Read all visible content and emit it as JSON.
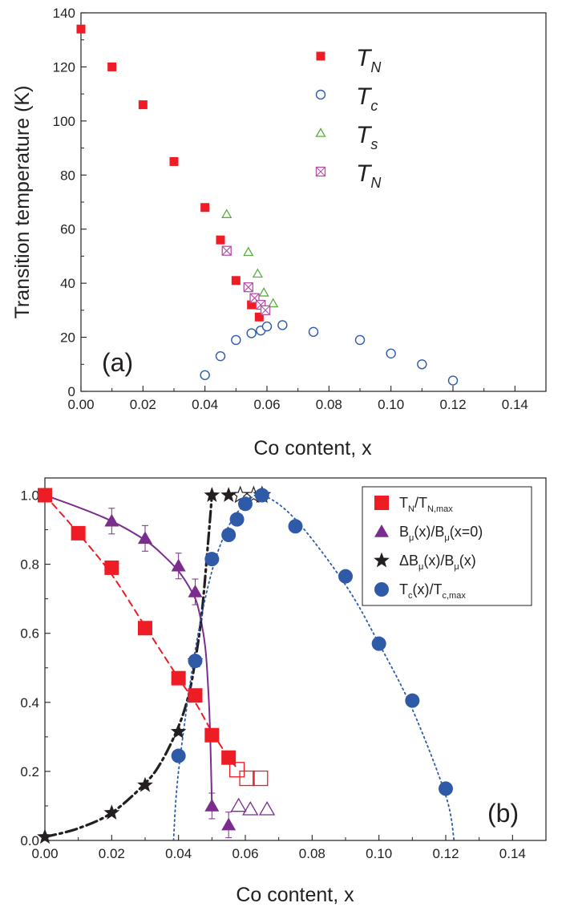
{
  "chart_data": [
    {
      "panel": "(a)",
      "type": "scatter",
      "xlabel": "Co content, x",
      "ylabel": "Transition temperature (K)",
      "xlim": [
        0.0,
        0.15
      ],
      "ylim": [
        0,
        140
      ],
      "xticks": [
        "0.00",
        "0.02",
        "0.04",
        "0.06",
        "0.08",
        "0.10",
        "0.12",
        "0.14"
      ],
      "yticks": [
        "0",
        "20",
        "40",
        "60",
        "80",
        "100",
        "120",
        "140"
      ],
      "legend": [
        {
          "main": "T",
          "sub": "N",
          "marker": "filled-square",
          "color": "#ee1c25"
        },
        {
          "main": "T",
          "sub": "c",
          "marker": "open-circle",
          "color": "#2e5aa8"
        },
        {
          "main": "T",
          "sub": "s",
          "marker": "open-triangle",
          "color": "#5aae3f"
        },
        {
          "main": "T",
          "sub": "N",
          "marker": "crossed-square",
          "color": "#b54fa6"
        }
      ],
      "series": [
        {
          "name": "T_N",
          "marker": "filled-square",
          "color": "#ee1c25",
          "x": [
            0.0,
            0.01,
            0.02,
            0.03,
            0.04,
            0.045,
            0.05,
            0.055,
            0.0575
          ],
          "y": [
            134,
            120,
            106,
            85,
            68,
            56,
            41,
            32,
            27.5
          ]
        },
        {
          "name": "T_c",
          "marker": "open-circle",
          "color": "#2e5aa8",
          "x": [
            0.04,
            0.045,
            0.05,
            0.055,
            0.058,
            0.06,
            0.065,
            0.075,
            0.09,
            0.1,
            0.11,
            0.12
          ],
          "y": [
            6,
            13,
            19,
            21.5,
            22.5,
            24,
            24.5,
            22,
            19,
            14,
            10,
            4
          ]
        },
        {
          "name": "T_s",
          "marker": "open-triangle",
          "color": "#5aae3f",
          "x": [
            0.047,
            0.054,
            0.057,
            0.059,
            0.062
          ],
          "y": [
            65.5,
            51.5,
            43.5,
            36.5,
            32.5
          ]
        },
        {
          "name": "T_N (mu)",
          "marker": "crossed-square",
          "color": "#b54fa6",
          "x": [
            0.047,
            0.054,
            0.056,
            0.058,
            0.0595
          ],
          "y": [
            52,
            38.5,
            34.5,
            32,
            30
          ]
        }
      ]
    },
    {
      "panel": "(b)",
      "type": "scatter",
      "xlabel": "Co content, x",
      "ylabel": "",
      "xlim": [
        0.0,
        0.15
      ],
      "ylim": [
        0.0,
        1.05
      ],
      "xticks": [
        "0.00",
        "0.02",
        "0.04",
        "0.06",
        "0.08",
        "0.10",
        "0.12",
        "0.14"
      ],
      "yticks": [
        "0.0",
        "0.2",
        "0.4",
        "0.6",
        "0.8",
        "1.0"
      ],
      "legend": [
        {
          "parts": [
            [
              "T",
              ""
            ],
            [
              "N",
              "sub"
            ],
            [
              "/T",
              ""
            ],
            [
              "N,max",
              "sub"
            ]
          ],
          "marker": "filled-square",
          "color": "#ee1c25"
        },
        {
          "parts": [
            [
              "B",
              ""
            ],
            [
              "μ",
              "sub"
            ],
            [
              "(x)/B",
              ""
            ],
            [
              "μ",
              "sub"
            ],
            [
              "(x=0)",
              ""
            ]
          ],
          "marker": "filled-triangle",
          "color": "#7b2d8e"
        },
        {
          "parts": [
            [
              "ΔB",
              ""
            ],
            [
              "μ",
              "sub"
            ],
            [
              "(x)/B",
              ""
            ],
            [
              "μ",
              "sub"
            ],
            [
              "(x)",
              ""
            ]
          ],
          "marker": "filled-star",
          "color": "#231f20"
        },
        {
          "parts": [
            [
              "T",
              ""
            ],
            [
              "c",
              "sub"
            ],
            [
              "(x)/T",
              ""
            ],
            [
              "c,max",
              "sub"
            ]
          ],
          "marker": "filled-circle",
          "color": "#2e5aa8"
        }
      ],
      "series": [
        {
          "name": "TN/TN,max",
          "marker": "filled-square",
          "color": "#ee1c25",
          "x": [
            0.0,
            0.01,
            0.02,
            0.03,
            0.04,
            0.045,
            0.05,
            0.055
          ],
          "y": [
            1.0,
            0.89,
            0.79,
            0.615,
            0.47,
            0.42,
            0.305,
            0.24
          ]
        },
        {
          "name": "TN/TN,max open",
          "marker": "open-square",
          "color": "#ee1c25",
          "x": [
            0.0575,
            0.0605,
            0.0645
          ],
          "y": [
            0.205,
            0.18,
            0.18
          ]
        },
        {
          "name": "Bmu(x)/Bmu(x=0)",
          "marker": "filled-triangle",
          "color": "#7b2d8e",
          "x": [
            0.02,
            0.03,
            0.04,
            0.045,
            0.05,
            0.055
          ],
          "y": [
            0.925,
            0.875,
            0.795,
            0.72,
            0.1,
            0.045
          ]
        },
        {
          "name": "Bmu(x)/Bmu(x=0) open",
          "marker": "open-triangle",
          "color": "#7b2d8e",
          "x": [
            0.058,
            0.0615,
            0.0665
          ],
          "y": [
            0.1,
            0.09,
            0.09
          ]
        },
        {
          "name": "dBmu(x)/Bmu(x)",
          "marker": "filled-star",
          "color": "#231f20",
          "x": [
            0.0,
            0.02,
            0.03,
            0.04,
            0.045,
            0.05,
            0.055
          ],
          "y": [
            0.01,
            0.08,
            0.16,
            0.315,
            0.52,
            1.0,
            1.0
          ]
        },
        {
          "name": "dBmu(x)/Bmu(x) open",
          "marker": "open-star",
          "color": "#231f20",
          "x": [
            0.0585,
            0.0625,
            0.065
          ],
          "y": [
            1.0,
            1.0,
            1.0
          ]
        },
        {
          "name": "Tc(x)/Tc,max",
          "marker": "filled-circle",
          "color": "#2e5aa8",
          "x": [
            0.04,
            0.045,
            0.05,
            0.055,
            0.0575,
            0.06,
            0.065,
            0.075,
            0.09,
            0.1,
            0.11,
            0.12
          ],
          "y": [
            0.245,
            0.52,
            0.815,
            0.885,
            0.93,
            0.975,
            1.0,
            0.91,
            0.765,
            0.57,
            0.405,
            0.15
          ]
        }
      ],
      "fit_lines": [
        {
          "name": "TN fit",
          "style": "dashed",
          "color": "#ee1c25",
          "x": [
            0.0,
            0.01,
            0.02,
            0.03,
            0.04,
            0.045,
            0.05,
            0.055,
            0.0575
          ],
          "y": [
            1.0,
            0.89,
            0.77,
            0.62,
            0.47,
            0.4,
            0.315,
            0.24,
            0.21
          ]
        },
        {
          "name": "Bmu fit",
          "style": "solid",
          "color": "#7b2d8e",
          "x": [
            0.0,
            0.01,
            0.02,
            0.03,
            0.035,
            0.04,
            0.044,
            0.046,
            0.048,
            0.049,
            0.0495,
            0.05
          ],
          "y": [
            1.0,
            0.965,
            0.925,
            0.87,
            0.83,
            0.78,
            0.72,
            0.67,
            0.56,
            0.42,
            0.3,
            0.1
          ]
        },
        {
          "name": "dBmu fit",
          "style": "dashdot",
          "color": "#231f20",
          "x": [
            0.0,
            0.01,
            0.02,
            0.03,
            0.035,
            0.04,
            0.043,
            0.045,
            0.047,
            0.049,
            0.05
          ],
          "y": [
            0.01,
            0.035,
            0.08,
            0.165,
            0.23,
            0.33,
            0.42,
            0.52,
            0.66,
            0.88,
            1.0
          ]
        },
        {
          "name": "Tc fit",
          "style": "dotted",
          "color": "#2e5aa8",
          "x": [
            0.0385,
            0.04,
            0.045,
            0.05,
            0.055,
            0.06,
            0.065,
            0.075,
            0.09,
            0.1,
            0.11,
            0.12,
            0.1225
          ],
          "y": [
            0.0,
            0.2,
            0.55,
            0.78,
            0.91,
            0.975,
            1.0,
            0.93,
            0.74,
            0.57,
            0.38,
            0.13,
            0.0
          ]
        }
      ]
    }
  ],
  "panel_labels": {
    "a": "(a)",
    "b": "(b)"
  }
}
